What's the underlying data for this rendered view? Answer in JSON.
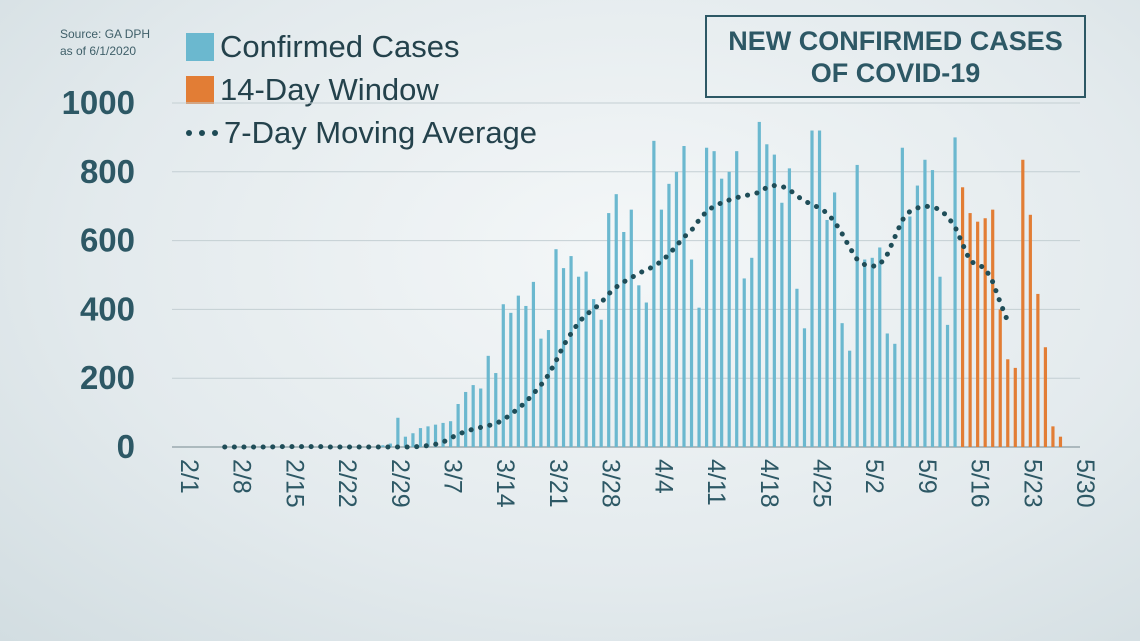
{
  "source": {
    "line1": "Source: GA DPH",
    "line2": "as of 6/1/2020"
  },
  "title": {
    "line1": "NEW CONFIRMED CASES",
    "line2": "OF COVID-19"
  },
  "legend": {
    "confirmed": "Confirmed Cases",
    "window": "14-Day Window",
    "average": "7-Day Moving Average"
  },
  "colors": {
    "confirmed": "#6bb8cf",
    "window": "#e27d35",
    "average": "#1f4d58",
    "axis_text": "#2d5865"
  },
  "chart_data": {
    "type": "bar",
    "x_start": "2/1",
    "x_ticks": [
      "2/1",
      "2/8",
      "2/15",
      "2/22",
      "2/29",
      "3/7",
      "3/14",
      "3/21",
      "3/28",
      "4/4",
      "4/11",
      "4/18",
      "4/25",
      "5/2",
      "5/9",
      "5/16",
      "5/23",
      "5/30"
    ],
    "ylim": [
      0,
      1000
    ],
    "y_ticks": [
      0,
      200,
      400,
      600,
      800,
      1000
    ],
    "grid": true,
    "series": [
      {
        "name": "Confirmed Cases",
        "type": "bar",
        "values": [
          0,
          0,
          0,
          0,
          0,
          0,
          0,
          2,
          0,
          0,
          0,
          0,
          0,
          0,
          0,
          0,
          0,
          0,
          0,
          0,
          0,
          0,
          0,
          0,
          0,
          0,
          0,
          0,
          5,
          10,
          85,
          30,
          40,
          55,
          60,
          65,
          70,
          75,
          125,
          160,
          180,
          170,
          265,
          215,
          415,
          390,
          440,
          410,
          480,
          315,
          340,
          575,
          520,
          555,
          495,
          510,
          430,
          370,
          680,
          735,
          625,
          690,
          470,
          420,
          890,
          690,
          765,
          800,
          875,
          545,
          405,
          870,
          860,
          780,
          800,
          860,
          490,
          550,
          945,
          880,
          850,
          710,
          810,
          460,
          345,
          920,
          920,
          660,
          740,
          360,
          280,
          820,
          545,
          550,
          580,
          330,
          300,
          870,
          670,
          760,
          835,
          805,
          495,
          355,
          900
        ],
        "start_index": 0
      },
      {
        "name": "14-Day Window",
        "type": "bar",
        "values": [
          755,
          680,
          655,
          665,
          690,
          400,
          255,
          230,
          835,
          675,
          445,
          290,
          60,
          30
        ],
        "start_index": 105
      },
      {
        "name": "7-Day Moving Average",
        "type": "line",
        "values": [
          0,
          0,
          0,
          0,
          0,
          0,
          0,
          1,
          1,
          1,
          1,
          1,
          1,
          1,
          0,
          0,
          0,
          0,
          0,
          0,
          0,
          0,
          0,
          0,
          0,
          0,
          2,
          4,
          8,
          14,
          26,
          37,
          45,
          52,
          57,
          62,
          68,
          79,
          95,
          112,
          131,
          155,
          180,
          210,
          250,
          295,
          330,
          362,
          385,
          400,
          420,
          445,
          465,
          480,
          492,
          505,
          515,
          525,
          540,
          560,
          585,
          610,
          630,
          660,
          685,
          700,
          710,
          718,
          725,
          730,
          735,
          740,
          755,
          760,
          758,
          748,
          730,
          715,
          705,
          695,
          680,
          655,
          620,
          580,
          545,
          530,
          525,
          530,
          560,
          610,
          660,
          685,
          695,
          700,
          698,
          690,
          670,
          640,
          590,
          540,
          530,
          520,
          480,
          420,
          365
        ]
      }
    ]
  }
}
